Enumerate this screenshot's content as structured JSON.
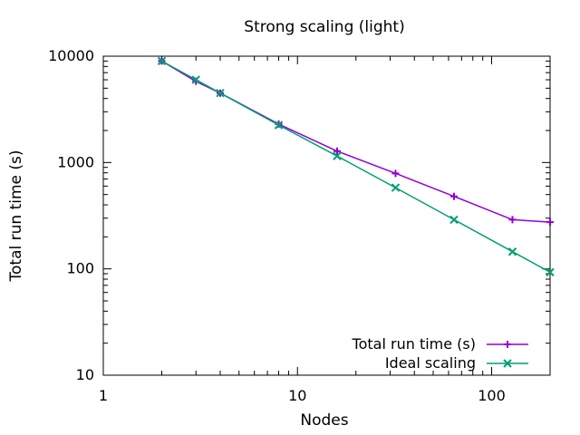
{
  "chart_data": {
    "type": "line",
    "title": "Strong scaling (light)",
    "xlabel": "Nodes",
    "ylabel": "Total run time (s)",
    "xscale": "log",
    "yscale": "log",
    "xlim": [
      1,
      200
    ],
    "ylim": [
      10,
      10000
    ],
    "x_ticks": [
      {
        "value": 1,
        "label": "1"
      },
      {
        "value": 10,
        "label": "10"
      },
      {
        "value": 100,
        "label": "100"
      }
    ],
    "y_ticks": [
      {
        "value": 10,
        "label": "10"
      },
      {
        "value": 100,
        "label": "100"
      },
      {
        "value": 1000,
        "label": "1000"
      },
      {
        "value": 10000,
        "label": "10000"
      }
    ],
    "grid": false,
    "legend": "bottom-right",
    "series": [
      {
        "name": "Total run time (s)",
        "color": "#9400d3",
        "marker": "plus",
        "x": [
          2,
          3,
          4,
          8,
          16,
          32,
          64,
          128,
          200
        ],
        "y": [
          9000,
          5800,
          4500,
          2300,
          1280,
          790,
          480,
          290,
          275
        ]
      },
      {
        "name": "Ideal scaling",
        "color": "#009e73",
        "marker": "cross",
        "x": [
          2,
          3,
          4,
          8,
          16,
          32,
          64,
          128,
          200
        ],
        "y": [
          9000,
          6000,
          4500,
          2250,
          1150,
          580,
          290,
          145,
          93
        ]
      }
    ]
  }
}
